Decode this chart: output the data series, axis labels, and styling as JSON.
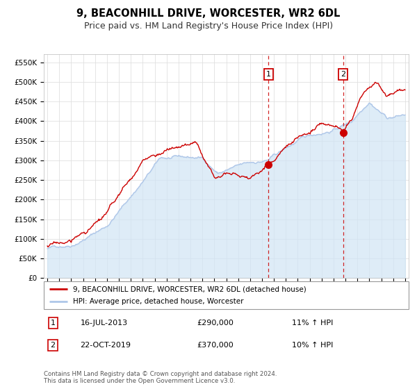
{
  "title": "9, BEACONHILL DRIVE, WORCESTER, WR2 6DL",
  "subtitle": "Price paid vs. HM Land Registry's House Price Index (HPI)",
  "title_fontsize": 10.5,
  "subtitle_fontsize": 9,
  "ylabel_ticks": [
    "£0",
    "£50K",
    "£100K",
    "£150K",
    "£200K",
    "£250K",
    "£300K",
    "£350K",
    "£400K",
    "£450K",
    "£500K",
    "£550K"
  ],
  "ylabel_values": [
    0,
    50000,
    100000,
    150000,
    200000,
    250000,
    300000,
    350000,
    400000,
    450000,
    500000,
    550000
  ],
  "ylim": [
    0,
    570000
  ],
  "hpi_color": "#aec6e8",
  "hpi_fill_color": "#d0e4f5",
  "price_color": "#cc0000",
  "dashed_line_color": "#cc0000",
  "grid_color": "#e0e0e0",
  "transaction1_date": "16-JUL-2013",
  "transaction1_price": 290000,
  "transaction1_hpi": "11% ↑ HPI",
  "transaction1_x": 2013.54,
  "transaction2_date": "22-OCT-2019",
  "transaction2_price": 370000,
  "transaction2_hpi": "10% ↑ HPI",
  "transaction2_x": 2019.8,
  "legend1_label": "9, BEACONHILL DRIVE, WORCESTER, WR2 6DL (detached house)",
  "legend2_label": "HPI: Average price, detached house, Worcester",
  "footer": "Contains HM Land Registry data © Crown copyright and database right 2024.\nThis data is licensed under the Open Government Licence v3.0."
}
